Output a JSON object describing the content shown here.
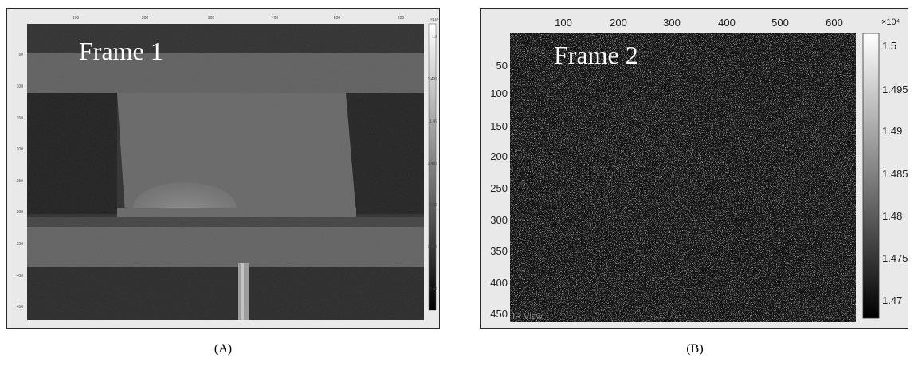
{
  "panels": [
    {
      "id": "A",
      "frame_label": "Frame 1",
      "x_ticks": [
        "100",
        "200",
        "300",
        "400",
        "500",
        "600"
      ],
      "y_ticks": [
        "50",
        "100",
        "150",
        "200",
        "250",
        "300",
        "350",
        "400",
        "450"
      ],
      "colorbar_ticks": [
        "1.5",
        "1.495",
        "1.49",
        "1.485",
        "1.48",
        "1.475",
        "1.47"
      ],
      "colorbar_exponent": "×10⁴",
      "caption": "(A)"
    },
    {
      "id": "B",
      "frame_label": "Frame 2",
      "x_ticks": [
        "100",
        "200",
        "300",
        "400",
        "500",
        "600"
      ],
      "y_ticks": [
        "50",
        "100",
        "150",
        "200",
        "250",
        "300",
        "350",
        "400",
        "450"
      ],
      "colorbar_ticks": [
        "1.5",
        "1.495",
        "1.49",
        "1.485",
        "1.48",
        "1.475",
        "1.47"
      ],
      "colorbar_exponent": "×10⁴",
      "watermark": "IR View",
      "caption": "(B)"
    }
  ],
  "colors": {
    "frame_bg": "#e9e9e9",
    "image_dark": "#1c1c1c",
    "image_mid": "#6e6e6e"
  }
}
